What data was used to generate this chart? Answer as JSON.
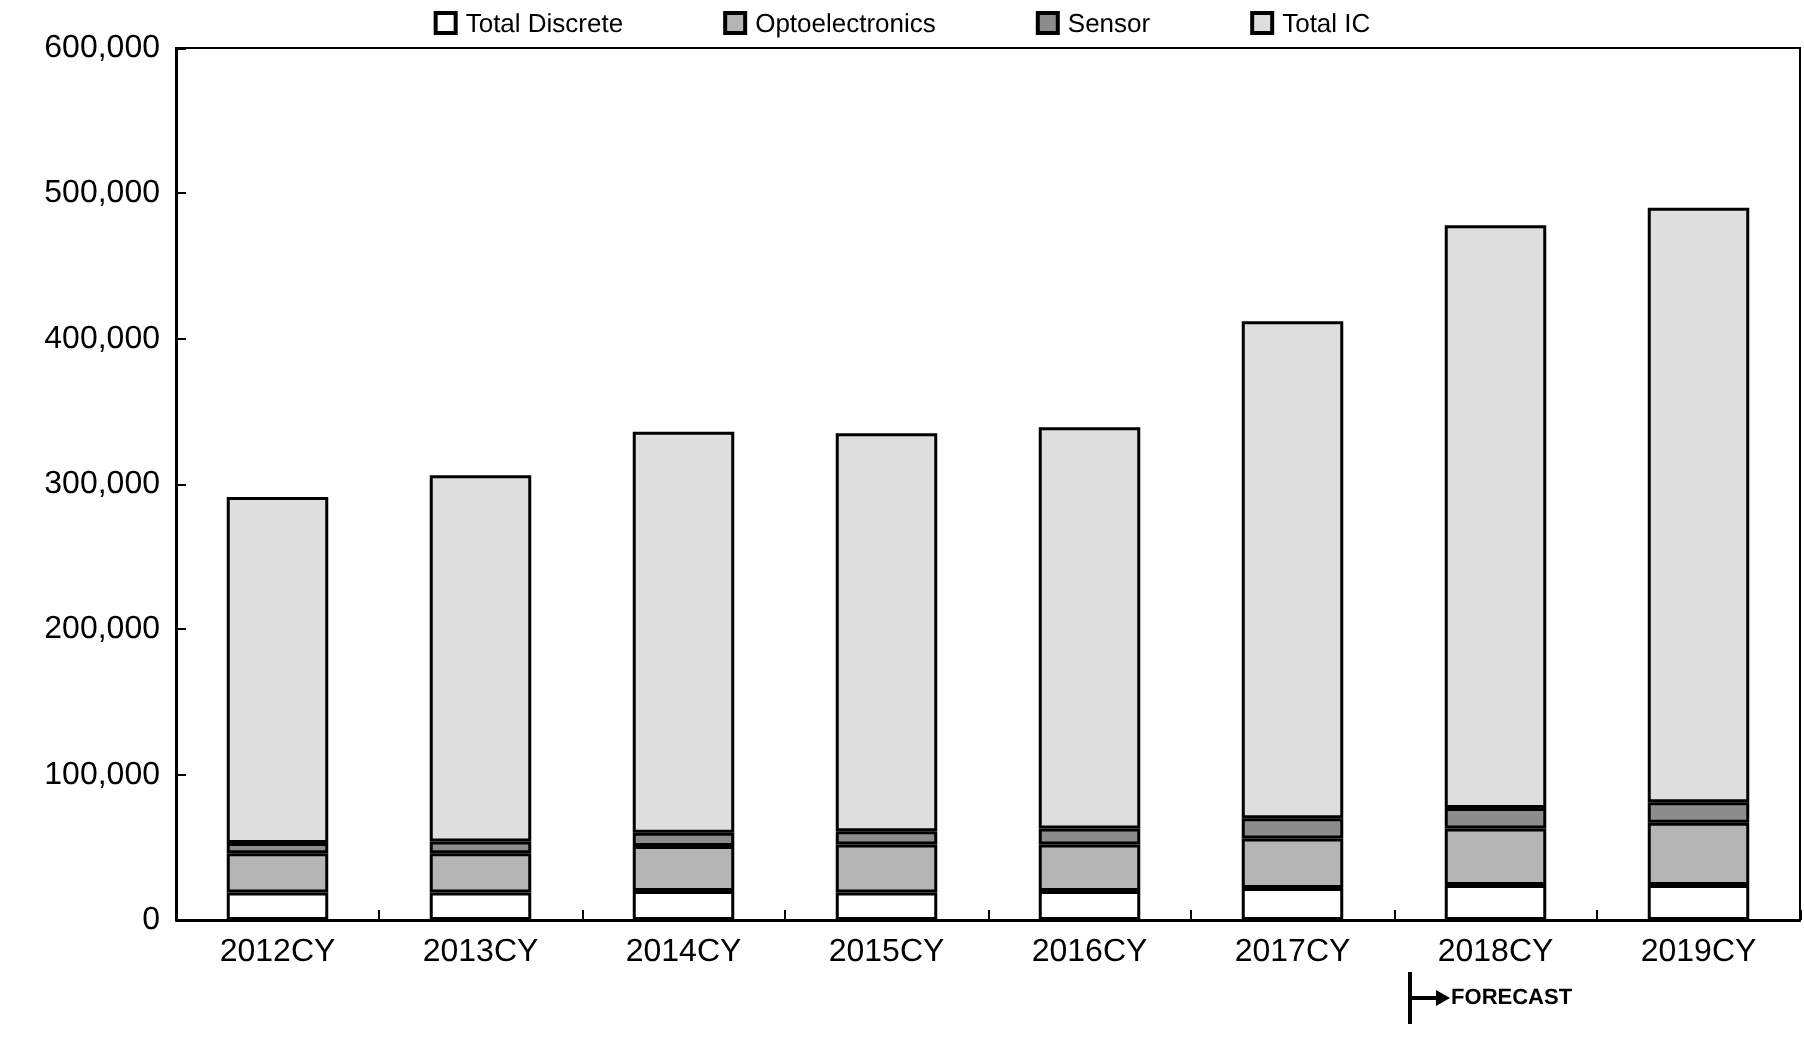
{
  "chart_data": {
    "type": "bar",
    "stacked": true,
    "categories": [
      "2012CY",
      "2013CY",
      "2014CY",
      "2015CY",
      "2016CY",
      "2017CY",
      "2018CY",
      "2019CY"
    ],
    "series": [
      {
        "name": "Total Discrete",
        "color": "#ffffff",
        "values": [
          19000,
          19000,
          20000,
          19000,
          20000,
          22000,
          24000,
          24000
        ]
      },
      {
        "name": "Optoelectronics",
        "color": "#b5b5b5",
        "values": [
          27000,
          27000,
          31000,
          33000,
          32000,
          34000,
          39000,
          43000
        ]
      },
      {
        "name": "Sensor",
        "color": "#8c8c8c",
        "values": [
          7000,
          8000,
          9000,
          9000,
          11000,
          14000,
          14000,
          14000
        ]
      },
      {
        "name": "Total IC",
        "color": "#dedede",
        "values": [
          238000,
          252000,
          276000,
          274000,
          276000,
          342000,
          401000,
          409000
        ]
      }
    ],
    "ylim": [
      0,
      600000
    ],
    "yticks": [
      0,
      {
        "value": 100000,
        "label": "100,000"
      },
      {
        "value": 200000,
        "label": "200,000"
      },
      {
        "value": 300000,
        "label": "300,000"
      },
      {
        "value": 400000,
        "label": "400,000"
      },
      {
        "value": 500000,
        "label": "500,000"
      },
      {
        "value": 600000,
        "label": "600,000"
      }
    ],
    "grid": false,
    "legend": "top",
    "annotations": [
      "FORECAST"
    ]
  }
}
